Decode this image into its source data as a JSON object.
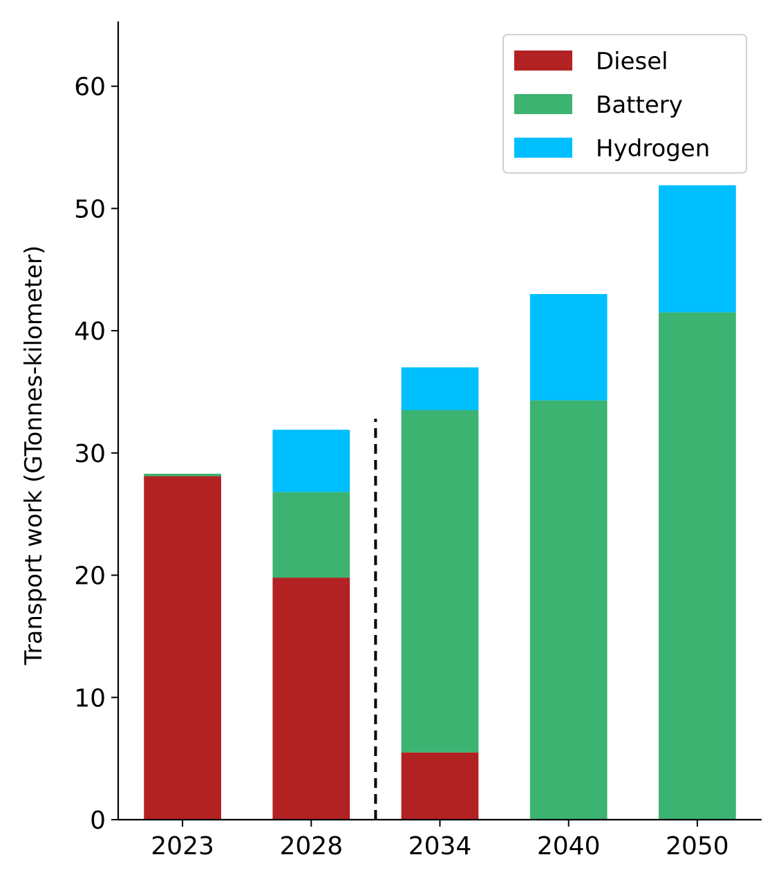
{
  "chart_data": {
    "type": "bar",
    "stacked": true,
    "categories": [
      "2023",
      "2028",
      "2034",
      "2040",
      "2050"
    ],
    "series": [
      {
        "name": "Diesel",
        "color": "#b22222",
        "values": [
          28.1,
          19.8,
          5.5,
          0.0,
          0.0
        ]
      },
      {
        "name": "Battery",
        "color": "#3cb371",
        "values": [
          0.2,
          7.0,
          28.0,
          34.3,
          41.5
        ]
      },
      {
        "name": "Hydrogen",
        "color": "#00bfff",
        "values": [
          0.0,
          5.1,
          3.5,
          8.7,
          10.4
        ]
      }
    ],
    "ylabel": "Transport work (GTonnes-kilometer)",
    "xlabel": "",
    "title": "",
    "ylim": [
      0,
      65.3
    ],
    "yticks": [
      0,
      10,
      20,
      30,
      40,
      50,
      60
    ],
    "grid": false,
    "legend_position": "top-right",
    "divider": {
      "style": "dashed",
      "after_category": "2028",
      "y_top": 32.8
    }
  }
}
